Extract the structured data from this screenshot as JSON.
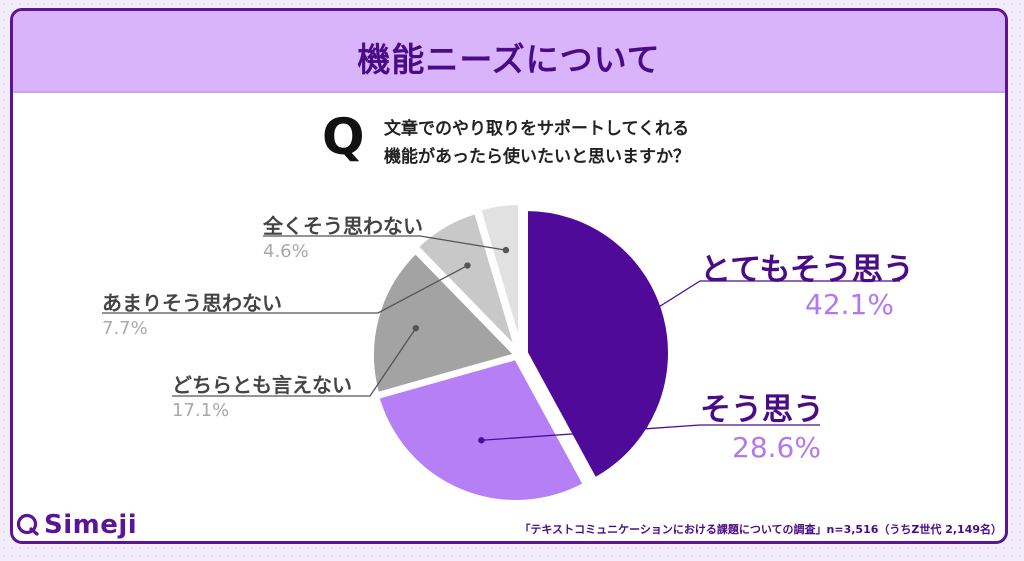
{
  "title": "機能ニーズについて",
  "question": {
    "mark": "Q",
    "line1": "文章でのやり取りをサポートしてくれる",
    "line2": "機能があったら使いたいと思いますか？"
  },
  "chart_data": {
    "type": "pie",
    "title": "機能ニーズについて",
    "slices": [
      {
        "label": "とてもそう思う",
        "value": 42.1,
        "value_text": "42.1%",
        "color": "#4f0a99"
      },
      {
        "label": "そう思う",
        "value": 28.6,
        "value_text": "28.6%",
        "color": "#b77ff6"
      },
      {
        "label": "どちらとも言えない",
        "value": 17.1,
        "value_text": "17.1%",
        "color": "#a3a3a3"
      },
      {
        "label": "あまりそう思わない",
        "value": 7.7,
        "value_text": "7.7%",
        "color": "#c8c8c8"
      },
      {
        "label": "全くそう思わない",
        "value": 4.6,
        "value_text": "4.6%",
        "color": "#e1e1e1"
      }
    ],
    "start": "12 o'clock",
    "direction": "clockwise",
    "exploded_slices": [
      "そう思う",
      "どちらとも言えない",
      "あまりそう思わない",
      "全くそう思わない"
    ]
  },
  "footer": {
    "brand": "Simeji",
    "source": "「テキストコミュニケーションにおける課題についての調査」n=3,516（うちZ世代 2,149名）"
  },
  "colors": {
    "accent": "#4a0b86",
    "header_bg": "#d9b4fb",
    "border": "#5a1495"
  }
}
